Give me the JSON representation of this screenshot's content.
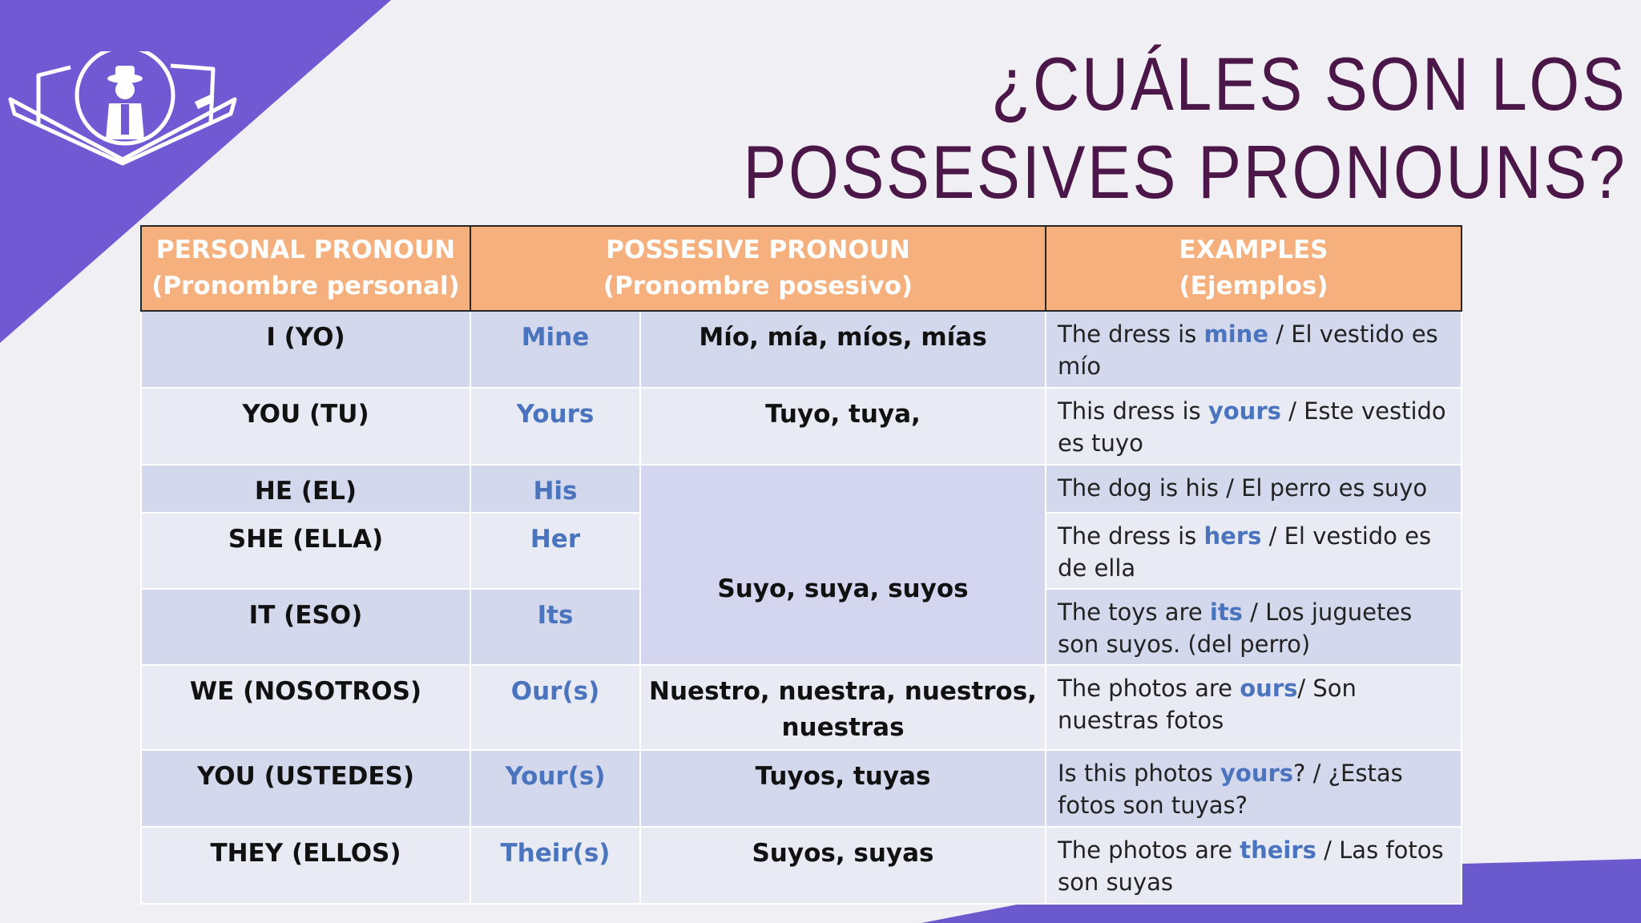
{
  "title": {
    "line1": "¿CUÁLES SON LOS",
    "line2": "POSSESIVES PRONOUNS?"
  },
  "colors": {
    "accent_purple": "#7259d4",
    "title": "#4b1748",
    "header": "#f5b07e",
    "highlight": "#4b74bf",
    "row_dark": "#d3d8ec",
    "row_light": "#e8eaf4"
  },
  "table": {
    "headers": [
      {
        "line1": "PERSONAL PRONOUN",
        "line2": "(Pronombre personal)"
      },
      {
        "line1": "POSSESIVE PRONOUN",
        "line2": "(Pronombre posesivo)"
      },
      {
        "line1": "EXAMPLES",
        "line2": "(Ejemplos)"
      }
    ],
    "merged_spanish": "Suyo, suya, suyos",
    "rows": [
      {
        "personal": "I (YO)",
        "possessive": "Mine",
        "spanish": "Mío, mía, míos, mías",
        "ex_pre": "The dress is ",
        "ex_hl": "mine",
        "ex_post": " / El vestido es mío"
      },
      {
        "personal": "YOU (TU)",
        "possessive": "Yours",
        "spanish": "Tuyo, tuya,",
        "ex_pre": "This dress is ",
        "ex_hl": "yours",
        "ex_post": " / Este vestido es tuyo"
      },
      {
        "personal": "HE (EL)",
        "possessive": "His",
        "ex_pre": "The dog is his / El perro es suyo",
        "ex_hl": "",
        "ex_post": ""
      },
      {
        "personal": "SHE (ELLA)",
        "possessive": "Her",
        "ex_pre": "The dress is ",
        "ex_hl": "hers",
        "ex_post": " / El vestido es de ella"
      },
      {
        "personal": "IT (ESO)",
        "possessive": "Its",
        "ex_pre": "The toys are ",
        "ex_hl": "its",
        "ex_post": " / Los juguetes son suyos. (del perro)"
      },
      {
        "personal": "WE (NOSOTROS)",
        "possessive": "Our(s)",
        "spanish": "Nuestro, nuestra, nuestros, nuestras",
        "ex_pre": "The photos are ",
        "ex_hl": "ours",
        "ex_post": "/ Son nuestras fotos"
      },
      {
        "personal": "YOU (USTEDES)",
        "possessive": "Your(s)",
        "spanish": "Tuyos, tuyas",
        "ex_pre": "Is this photos ",
        "ex_hl": "yours",
        "ex_post": "? / ¿Estas fotos son tuyas?"
      },
      {
        "personal": "THEY (ELLOS)",
        "possessive": "Their(s)",
        "spanish": "Suyos, suyas",
        "ex_pre": "The photos are ",
        "ex_hl": "theirs",
        "ex_post": " / Las fotos son suyas"
      }
    ]
  }
}
